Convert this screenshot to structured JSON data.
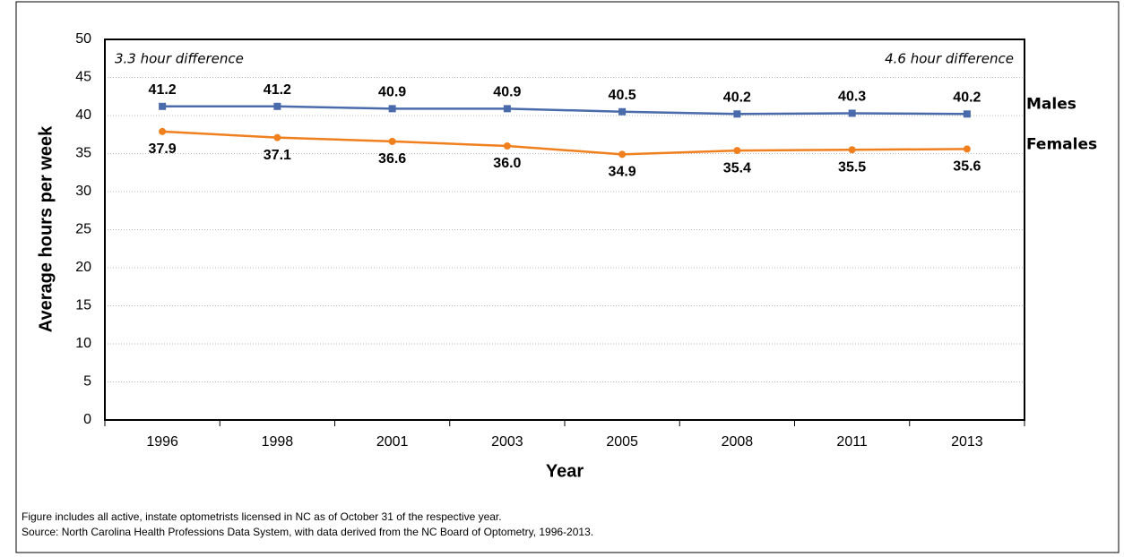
{
  "chart_data": {
    "type": "line",
    "y_label": "Average hours per week",
    "x_label": "Year",
    "annotations": [
      "3.3 hour difference",
      "4.6 hour difference"
    ],
    "footnotes": [
      "Figure includes all active, instate optometrists licensed in NC as of October 31 of the respective year.",
      "Source: North Carolina Health Professions Data System, with data derived from the NC Board of Optometry, 1996-2013."
    ],
    "categories": [
      "1996",
      "1998",
      "2001",
      "2003",
      "2005",
      "2008",
      "2011",
      "2013"
    ],
    "series": [
      {
        "name": "Males",
        "color": "#4a6bab",
        "marker": "square",
        "values": [
          41.2,
          41.2,
          40.9,
          40.9,
          40.5,
          40.2,
          40.3,
          40.2
        ]
      },
      {
        "name": "Females",
        "color": "#f07f1e",
        "marker": "circle",
        "values": [
          37.9,
          37.1,
          36.6,
          36.0,
          34.9,
          35.4,
          35.5,
          35.6
        ],
        "value_labels": [
          "37.9",
          "37.1",
          "36.6",
          "36.0",
          "34.9",
          "35.4",
          "35.5",
          "35.6"
        ]
      }
    ],
    "ylim": [
      0,
      50
    ],
    "yticks": [
      0,
      5,
      10,
      15,
      20,
      25,
      30,
      35,
      40,
      45,
      50
    ],
    "grid": true
  }
}
